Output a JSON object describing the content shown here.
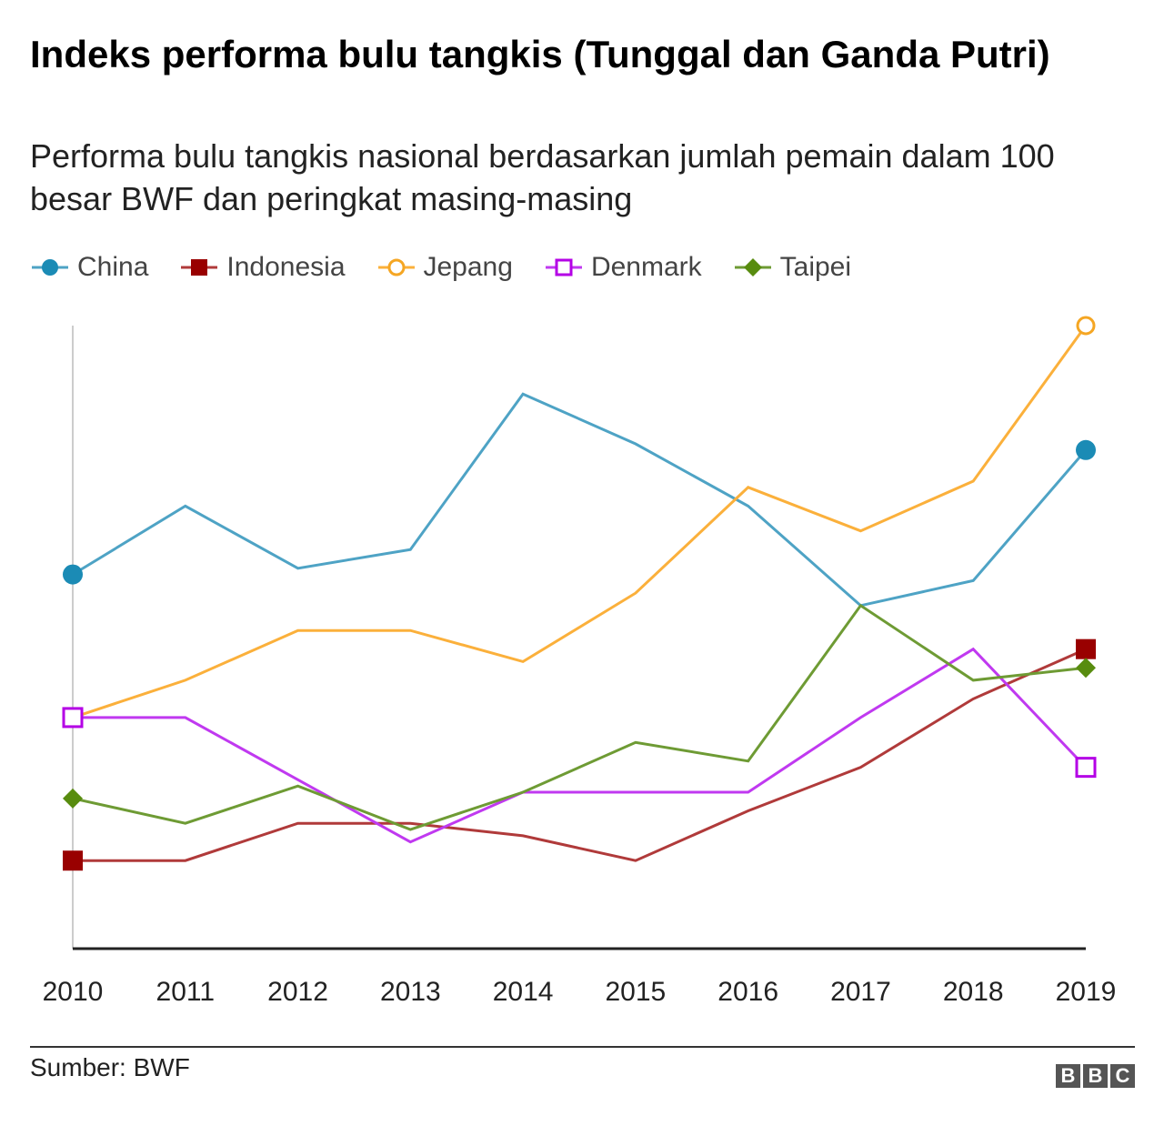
{
  "header": {
    "title": "Indeks performa bulu tangkis (Tunggal dan Ganda Putri)",
    "subtitle": "Performa bulu tangkis nasional berdasarkan jumlah pemain dalam 100 besar BWF dan peringkat masing-masing"
  },
  "footer": {
    "source": "Sumber: BWF",
    "logo_letters": [
      "B",
      "B",
      "C"
    ]
  },
  "chart_data": {
    "type": "line",
    "title": "Indeks performa bulu tangkis (Tunggal dan Ganda Putri)",
    "xlabel": "",
    "ylabel": "",
    "ylim": [
      0,
      100
    ],
    "grid": false,
    "legend_position": "top-left",
    "x": [
      "2010",
      "2011",
      "2012",
      "2013",
      "2014",
      "2015",
      "2016",
      "2017",
      "2018",
      "2019"
    ],
    "series": [
      {
        "name": "China",
        "color": "#1b8bb5",
        "line_color": "#4ea3c5",
        "marker": "circle-filled",
        "values": [
          60,
          71,
          61,
          64,
          89,
          81,
          71,
          55,
          59,
          80
        ]
      },
      {
        "name": "Indonesia",
        "color": "#990000",
        "line_color": "#b03a3a",
        "marker": "square-filled",
        "values": [
          14,
          14,
          20,
          20,
          18,
          14,
          22,
          29,
          40,
          48
        ]
      },
      {
        "name": "Jepang",
        "color": "#f5a623",
        "line_color": "#fbb03b",
        "marker": "circle-open",
        "values": [
          37,
          43,
          51,
          51,
          46,
          57,
          74,
          67,
          75,
          100
        ]
      },
      {
        "name": "Denmark",
        "color": "#b400e6",
        "line_color": "#c039f0",
        "marker": "square-open",
        "values": [
          37,
          37,
          27,
          17,
          25,
          25,
          25,
          37,
          48,
          29
        ]
      },
      {
        "name": "Taipei",
        "color": "#588c0f",
        "line_color": "#6e9b34",
        "marker": "diamond-filled",
        "values": [
          24,
          20,
          26,
          19,
          25,
          33,
          30,
          55,
          43,
          45
        ]
      }
    ]
  }
}
